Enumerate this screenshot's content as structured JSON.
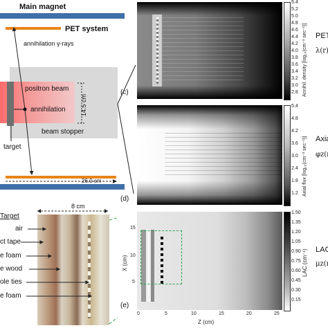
{
  "schematic": {
    "main_magnet": "Main magnet",
    "pet_system": "PET system",
    "annihilation_gamma": "annihilation γ-rays",
    "positron_beam": "positron beam",
    "annihilation": "annihilation",
    "dimension_vertical": "14.5 cm",
    "beam_stopper": "beam stopper",
    "target": "target",
    "dimension_horizontal": "26.0 cm",
    "panel_c": "(c)"
  },
  "photo": {
    "title": "Target",
    "width_label": "8 cm",
    "labels": [
      "air",
      "ct tape",
      "e foam",
      "e wood",
      "ole ties",
      "e foam"
    ]
  },
  "panel_top": {
    "colorbar_label": "Annihil. density [log₁₀(cm⁻³ sec⁻¹)]",
    "ticks": [
      "5.4",
      "5.2",
      "5.0",
      "4.8",
      "4.6",
      "4.4",
      "4.2",
      "4.0",
      "3.8",
      "3.6",
      "3.4",
      "3.2",
      "3.0",
      "2.8"
    ],
    "side_label": "PET",
    "side_formula": "λ(r)"
  },
  "panel_mid": {
    "colorbar_label": "Axial flux [log₁₀(cm⁻² sec⁻¹)]",
    "ticks": [
      "5.4",
      "4.8",
      "4.2",
      "3.6",
      "3.0",
      "2.4",
      "1.8",
      "1.2"
    ],
    "side_label": "Axia",
    "side_formula": "φz(r",
    "panel_d": "(d)"
  },
  "panel_bottom": {
    "colorbar_label": "LAC (cm⁻¹)",
    "ticks": [
      "1.50",
      "1.35",
      "1.20",
      "1.05",
      "0.90",
      "0.75",
      "0.60",
      "0.45",
      "0.30",
      "0.15"
    ],
    "y_axis_label": "X (cm)",
    "y_ticks": [
      "15",
      "10",
      "5"
    ],
    "x_axis_label": "Z (cm)",
    "x_ticks": [
      "0",
      "5",
      "10",
      "15",
      "20",
      "25"
    ],
    "side_label": "LAC",
    "side_formula": "μz(r",
    "panel_e": "(e)"
  }
}
